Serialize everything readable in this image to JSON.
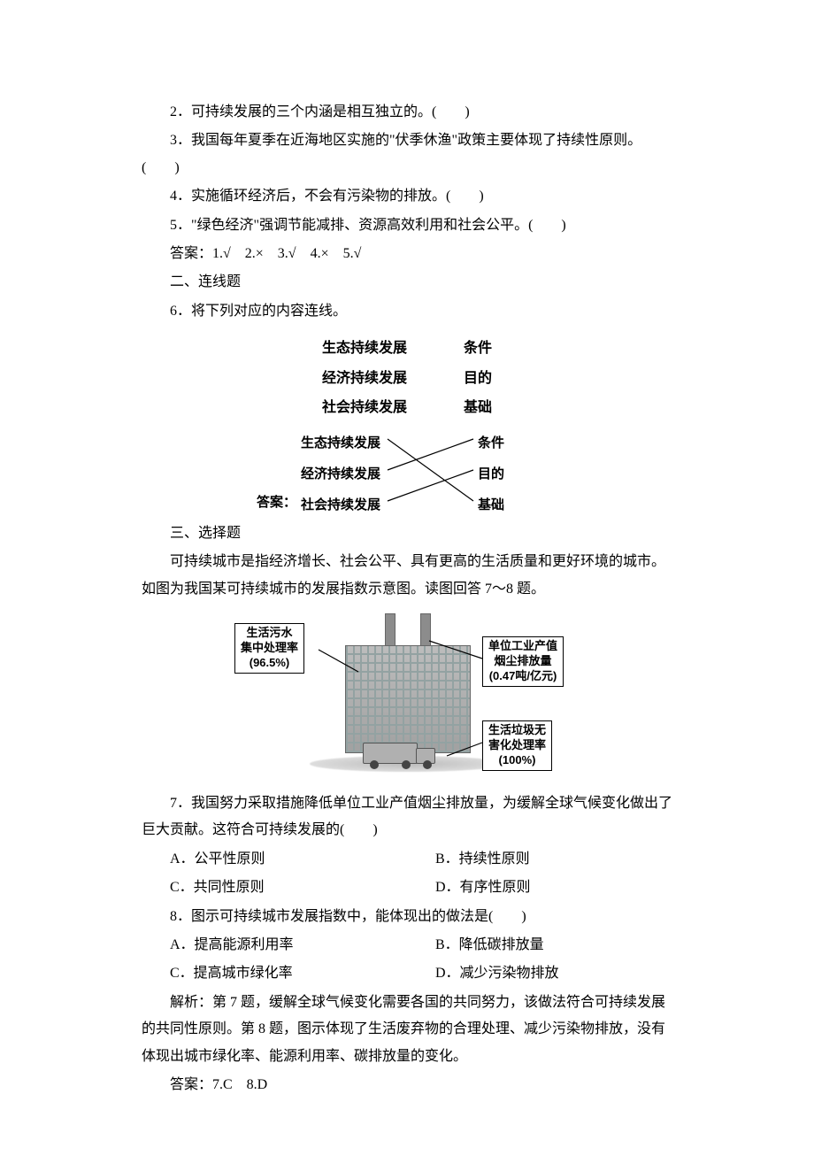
{
  "judgement": {
    "q2": "2．可持续发展的三个内涵是相互独立的。(　　)",
    "q3": "3．我国每年夏季在近海地区实施的\"伏季休渔\"政策主要体现了持续性原则。(　　)",
    "q4": "4．实施循环经济后，不会有污染物的排放。(　　)",
    "q5": "5．\"绿色经济\"强调节能减排、资源高效利用和社会公平。(　　)",
    "answer": "答案：1.√　2.×　3.√　4.×　5.√"
  },
  "section2": {
    "title": "二、连线题",
    "q6": "6．将下列对应的内容连线。"
  },
  "matching": {
    "left": [
      "生态持续发展",
      "经济持续发展",
      "社会持续发展"
    ],
    "right": [
      "条件",
      "目的",
      "基础"
    ],
    "answer_prefix": "答案：",
    "answer_left": [
      "生态持续发展",
      "经济持续发展",
      "社会持续发展"
    ],
    "answer_right": [
      "条件",
      "目的",
      "基础"
    ],
    "crossing_edges": [
      [
        0,
        2
      ],
      [
        1,
        0
      ],
      [
        2,
        1
      ]
    ],
    "line_color": "#000000"
  },
  "section3": {
    "title": "三、选择题",
    "intro": "可持续城市是指经济增长、社会公平、具有更高的生活质量和更好环境的城市。如图为我国某可持续城市的发展指数示意图。读图回答 7～8 题。"
  },
  "city_figure": {
    "callouts": {
      "sewage": {
        "l1": "生活污水",
        "l2": "集中处理率",
        "l3": "(96.5%)"
      },
      "smoke": {
        "l1": "单位工业产值",
        "l2": "烟尘排放量",
        "l3": "(0.47吨/亿元)"
      },
      "waste": {
        "l1": "生活垃圾无",
        "l2": "害化处理率",
        "l3": "(100%)"
      }
    },
    "callout_border": "#000000",
    "callout_bg": "#ffffff"
  },
  "q7": {
    "stem": "7．我国努力采取措施降低单位工业产值烟尘排放量，为缓解全球气候变化做出了巨大贡献。这符合可持续发展的(　　)",
    "A": "A．公平性原则",
    "B": "B．持续性原则",
    "C": "C．共同性原则",
    "D": "D．有序性原则"
  },
  "q8": {
    "stem": "8．图示可持续城市发展指数中，能体现出的做法是(　　)",
    "A": "A．提高能源利用率",
    "B": "B．降低碳排放量",
    "C": "C．提高城市绿化率",
    "D": "D．减少污染物排放"
  },
  "explain": "解析：第 7 题，缓解全球气候变化需要各国的共同努力，该做法符合可持续发展的共同性原则。第 8 题，图示体现了生活废弃物的合理处理、减少污染物排放，没有体现出城市绿化率、能源利用率、碳排放量的变化。",
  "answer78": "答案：7.C　8.D"
}
